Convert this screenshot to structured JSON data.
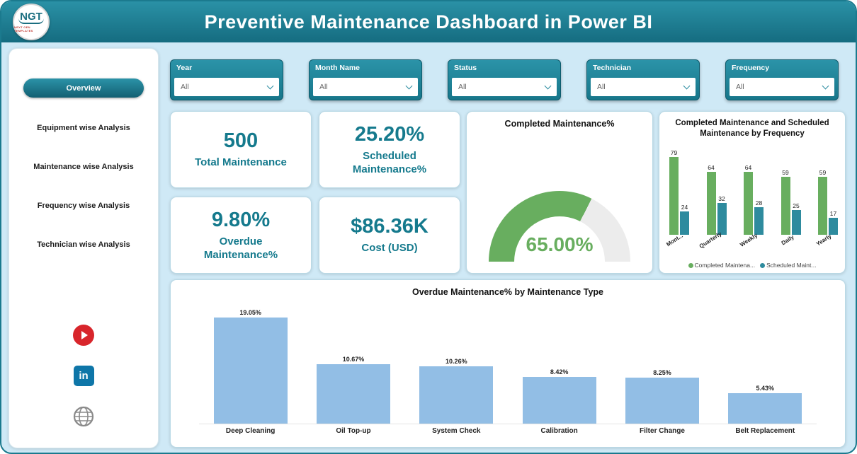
{
  "header": {
    "title": "Preventive Maintenance Dashboard in Power BI",
    "logo_text": "NGT",
    "logo_subtext": "NEXT GEN TEMPLATES"
  },
  "sidebar": {
    "items": [
      {
        "label": "Overview",
        "active": true
      },
      {
        "label": "Equipment wise Analysis",
        "active": false
      },
      {
        "label": "Maintenance wise Analysis",
        "active": false
      },
      {
        "label": "Frequency wise Analysis",
        "active": false
      },
      {
        "label": "Technician wise Analysis",
        "active": false
      }
    ],
    "social_icons": [
      "youtube-icon",
      "linkedin-icon",
      "globe-icon"
    ]
  },
  "filters": [
    {
      "label": "Year",
      "value": "All"
    },
    {
      "label": "Month Name",
      "value": "All"
    },
    {
      "label": "Status",
      "value": "All"
    },
    {
      "label": "Technician",
      "value": "All"
    },
    {
      "label": "Frequency",
      "value": "All"
    }
  ],
  "kpis": [
    {
      "value": "500",
      "label": "Total Maintenance"
    },
    {
      "value": "25.20%",
      "label": "Scheduled Maintenance%"
    },
    {
      "value": "9.80%",
      "label": "Overdue Maintenance%"
    },
    {
      "value": "$86.36K",
      "label": "Cost (USD)"
    }
  ],
  "colors": {
    "teal": "#17798d",
    "green": "#68ae5f",
    "teal_bar": "#2e8b9e",
    "light_blue_bar": "#92bee5",
    "gauge_rest": "#ececec"
  },
  "chart_data": [
    {
      "type": "gauge",
      "title": "Completed Maintenance%",
      "value": 65.0,
      "min": 0,
      "max": 100,
      "label": "65.00%"
    },
    {
      "type": "bar",
      "title": "Completed Maintenance and Scheduled Maintenance by Frequency",
      "categories": [
        "Mont...",
        "Quarterly",
        "Weekly",
        "Daily",
        "Yearly"
      ],
      "series": [
        {
          "name": "Completed Maintena...",
          "color": "#68ae5f",
          "values": [
            79,
            64,
            64,
            59,
            59
          ]
        },
        {
          "name": "Scheduled Maint...",
          "color": "#2e8b9e",
          "values": [
            24,
            32,
            28,
            25,
            17
          ]
        }
      ],
      "legend_position": "bottom",
      "ylim": [
        0,
        79
      ]
    },
    {
      "type": "bar",
      "title": "Overdue Maintenance% by Maintenance Type",
      "categories": [
        "Deep Cleaning",
        "Oil Top-up",
        "System Check",
        "Calibration",
        "Filter Change",
        "Belt Replacement"
      ],
      "values": [
        19.05,
        10.67,
        10.26,
        8.42,
        8.25,
        5.43
      ],
      "labels": [
        "19.05%",
        "10.67%",
        "10.26%",
        "8.42%",
        "8.25%",
        "5.43%"
      ],
      "bar_color": "#92bee5",
      "ylim": [
        0,
        20
      ]
    }
  ]
}
